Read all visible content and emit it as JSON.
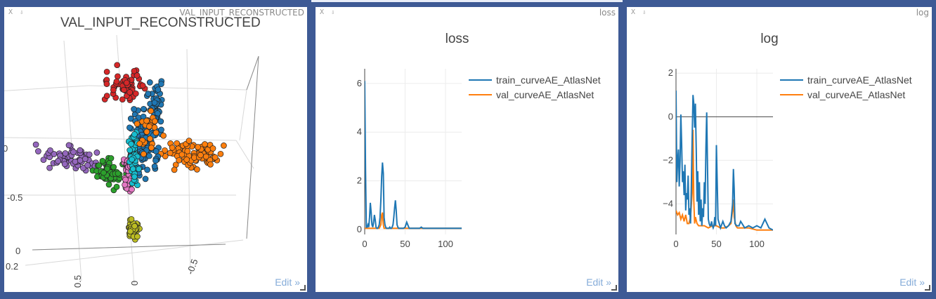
{
  "panes": [
    {
      "title": "VAL_INPUT_RECONSTRUCTED",
      "close_label": "X",
      "pin_label": "⇩",
      "edit_label": "Edit »",
      "chart": {
        "title": "VAL_INPUT_RECONSTRUCTED",
        "tick_labels": [
          "0",
          "-0.5",
          "0",
          "0.2",
          "0.5",
          "0",
          "-0.5"
        ]
      }
    },
    {
      "title": "loss",
      "close_label": "X",
      "pin_label": "⇩",
      "edit_label": "Edit »"
    },
    {
      "title": "log",
      "close_label": "X",
      "pin_label": "⇩",
      "edit_label": "Edit »"
    }
  ],
  "chart_data": [
    {
      "type": "scatter",
      "title": "VAL_INPUT_RECONSTRUCTED",
      "series": [
        {
          "color": "#d62728",
          "cluster": "top"
        },
        {
          "color": "#1f77b4",
          "cluster": "center-column"
        },
        {
          "color": "#ff7f0e",
          "cluster": "right-arm"
        },
        {
          "color": "#9467bd",
          "cluster": "left-arm"
        },
        {
          "color": "#2ca02c",
          "cluster": "center-left"
        },
        {
          "color": "#e377c2",
          "cluster": "center-column"
        },
        {
          "color": "#17becf",
          "cluster": "center-column"
        },
        {
          "color": "#bcbd22",
          "cluster": "bottom"
        }
      ]
    },
    {
      "type": "line",
      "title": "loss",
      "xlim": [
        0,
        120
      ],
      "ylim": [
        -0.2,
        6.6
      ],
      "xticks": [
        0,
        50,
        100
      ],
      "yticks": [
        0,
        2,
        4,
        6
      ],
      "legend_position": "top-right",
      "series": [
        {
          "name": "train_curveAE_AtlasNet",
          "color": "#1f77b4",
          "x": [
            0,
            1,
            2,
            3,
            4,
            5,
            6,
            7,
            8,
            9,
            10,
            11,
            12,
            13,
            14,
            15,
            16,
            17,
            18,
            19,
            20,
            21,
            22,
            23,
            24,
            25,
            26,
            27,
            28,
            29,
            30,
            31,
            32,
            33,
            34,
            35,
            36,
            37,
            38,
            39,
            40,
            41,
            42,
            43,
            44,
            45,
            48,
            50,
            52,
            55,
            60,
            65,
            68,
            70,
            72,
            75,
            80,
            90,
            100,
            110,
            120
          ],
          "y": [
            6.1,
            2.4,
            0.1,
            0.1,
            0.2,
            0.1,
            0.5,
            1.1,
            0.7,
            0.2,
            0.1,
            0.3,
            0.6,
            0.4,
            0.1,
            0.05,
            0.05,
            0.1,
            0.2,
            0.5,
            1.2,
            2.2,
            2.75,
            2.3,
            0.5,
            0.2,
            0.1,
            0.05,
            0.05,
            0.05,
            0.05,
            0.1,
            0.05,
            0.05,
            0.1,
            0.2,
            0.5,
            0.9,
            1.2,
            0.8,
            0.2,
            0.1,
            0.05,
            0.05,
            0.05,
            0.05,
            0.05,
            0.1,
            0.3,
            0.05,
            0.05,
            0.05,
            0.05,
            0.1,
            0.05,
            0.05,
            0.05,
            0.05,
            0.05,
            0.05,
            0.05
          ]
        },
        {
          "name": "val_curveAE_AtlasNet",
          "color": "#ff7f0e",
          "x": [
            0,
            5,
            10,
            15,
            18,
            20,
            21,
            22,
            23,
            24,
            25,
            30,
            40,
            50,
            60,
            70,
            80,
            90,
            100,
            110,
            120
          ],
          "y": [
            0.05,
            0.05,
            0.05,
            0.05,
            0.05,
            0.2,
            0.6,
            0.7,
            0.2,
            0.05,
            0.05,
            0.05,
            0.05,
            0.05,
            0.05,
            0.05,
            0.05,
            0.05,
            0.05,
            0.05,
            0.05
          ]
        }
      ]
    },
    {
      "type": "line",
      "title": "log",
      "xlim": [
        0,
        120
      ],
      "ylim": [
        -5.4,
        2.2
      ],
      "xticks": [
        0,
        50,
        100
      ],
      "yticks": [
        -4,
        -2,
        0,
        2
      ],
      "legend_position": "top-right",
      "series": [
        {
          "name": "train_curveAE_AtlasNet",
          "color": "#1f77b4",
          "x": [
            0,
            1,
            2,
            3,
            4,
            5,
            6,
            7,
            8,
            9,
            10,
            11,
            12,
            13,
            14,
            15,
            16,
            17,
            18,
            19,
            20,
            21,
            22,
            23,
            24,
            25,
            26,
            27,
            28,
            29,
            30,
            31,
            32,
            33,
            34,
            35,
            36,
            37,
            38,
            39,
            40,
            41,
            42,
            43,
            44,
            45,
            46,
            47,
            48,
            49,
            50,
            52,
            55,
            58,
            60,
            62,
            65,
            68,
            70,
            71,
            72,
            73,
            75,
            78,
            80,
            85,
            90,
            95,
            100,
            105,
            110,
            115,
            120
          ],
          "y": [
            1.2,
            -3.0,
            -2.0,
            -1.5,
            -3.2,
            -2.0,
            0.1,
            -1.2,
            -3.0,
            -2.5,
            -3.6,
            -2.2,
            -4.3,
            -3.5,
            -3.8,
            -2.7,
            -4.5,
            -4.2,
            -4.9,
            -3.2,
            -1.0,
            1.0,
            0.6,
            -0.5,
            0.6,
            -1.5,
            -3.9,
            -2.5,
            -4.5,
            -3.0,
            -4.8,
            -3.8,
            -5.0,
            -4.2,
            -4.6,
            -3.0,
            -4.0,
            -1.4,
            0.2,
            -2.2,
            -4.7,
            -4.9,
            -5.0,
            -5.0,
            -4.8,
            -5.0,
            -5.1,
            -5.0,
            -4.6,
            -5.0,
            -1.3,
            -4.7,
            -5.1,
            -4.8,
            -5.0,
            -5.1,
            -5.0,
            -4.8,
            -4.0,
            -2.4,
            -3.3,
            -4.9,
            -5.0,
            -5.0,
            -4.8,
            -5.1,
            -5.0,
            -5.1,
            -5.0,
            -5.1,
            -4.7,
            -5.1,
            -5.2
          ]
        },
        {
          "name": "val_curveAE_AtlasNet",
          "color": "#ff7f0e",
          "x": [
            0,
            2,
            4,
            6,
            8,
            10,
            12,
            14,
            16,
            18,
            20,
            21,
            22,
            23,
            24,
            26,
            28,
            30,
            35,
            40,
            45,
            50,
            55,
            60,
            65,
            68,
            70,
            71,
            72,
            74,
            76,
            80,
            90,
            100,
            110,
            120
          ],
          "y": [
            -4.3,
            -4.5,
            -4.4,
            -4.7,
            -4.5,
            -4.8,
            -4.5,
            -4.9,
            -4.9,
            -4.6,
            -3.5,
            -0.6,
            -3.8,
            -4.9,
            -4.6,
            -4.9,
            -5.0,
            -5.0,
            -5.0,
            -5.1,
            -5.0,
            -5.0,
            -5.1,
            -5.1,
            -5.0,
            -4.9,
            -4.3,
            -3.8,
            -4.6,
            -5.0,
            -5.1,
            -5.1,
            -5.1,
            -5.2,
            -5.2,
            -5.2
          ]
        }
      ]
    }
  ]
}
